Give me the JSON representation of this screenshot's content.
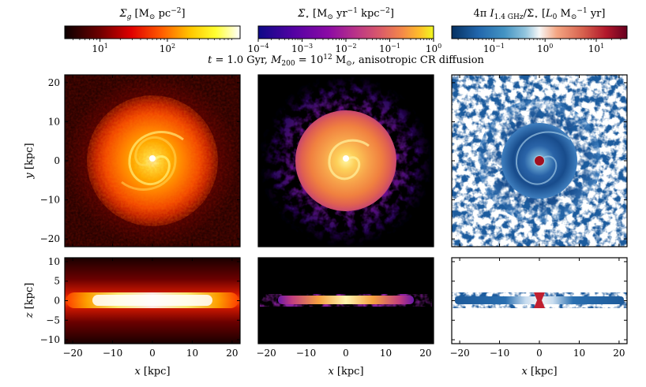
{
  "figure": {
    "subtitle": "t = 1.0 Gyr, M200 = 10^12 M⊙, anisotropic CR diffusion",
    "subtitle_parts": [
      "t",
      " = 1.0 Gyr, ",
      "M",
      "200",
      " = 10",
      "12",
      " M",
      "⊙",
      ", anisotropic CR diffusion"
    ]
  },
  "colorbars": [
    {
      "name": "gas-surface-density",
      "label": "Σg [M⊙ pc−2]",
      "label_parts": [
        "Σ",
        "g",
        " [M",
        "⊙",
        " pc",
        "−2",
        "]"
      ],
      "scale": "log",
      "range": [
        3,
        1200
      ],
      "colormap": "hot",
      "ticks": [
        {
          "base": "10",
          "exp": "1",
          "value": 10
        },
        {
          "base": "10",
          "exp": "2",
          "value": 100
        }
      ]
    },
    {
      "name": "star-formation-rate-density",
      "label": "Σ̇⋆ [M⊙ yr−1 kpc−2]",
      "label_parts": [
        "Σ̇",
        "⋆",
        " [M",
        "⊙",
        " yr",
        "−1",
        " kpc",
        "−2",
        "]"
      ],
      "scale": "log",
      "range": [
        0.0001,
        1
      ],
      "colormap": "plasma",
      "ticks": [
        {
          "base": "10",
          "exp": "−4",
          "value": 0.0001
        },
        {
          "base": "10",
          "exp": "−3",
          "value": 0.001
        },
        {
          "base": "10",
          "exp": "−2",
          "value": 0.01
        },
        {
          "base": "10",
          "exp": "−1",
          "value": 0.1
        },
        {
          "base": "10",
          "exp": "0",
          "value": 1
        }
      ]
    },
    {
      "name": "radio-to-sfr-ratio",
      "label": "4π I1.4 GHz/Σ̇⋆ [L0 M⊙−1 yr]",
      "label_parts": [
        "4π ",
        "I",
        "1.4 GHz",
        "/Σ̇",
        "⋆",
        " [",
        "L",
        "0",
        " M",
        "⊙",
        "−1",
        " yr]"
      ],
      "scale": "log",
      "range": [
        0.015,
        40
      ],
      "colormap": "RdBu_r",
      "ticks": [
        {
          "base": "10",
          "exp": "−1",
          "value": 0.1
        },
        {
          "base": "10",
          "exp": "0",
          "value": 1
        },
        {
          "base": "10",
          "exp": "1",
          "value": 10
        }
      ]
    }
  ],
  "chart_data": [
    {
      "type": "heatmap",
      "panel": "face-on gas surface density",
      "colormap": "hot",
      "xlabel": "",
      "ylabel": "y [kpc]",
      "xlim": [
        -22,
        22
      ],
      "ylim": [
        -22,
        22
      ],
      "xticks": [
        -20,
        -10,
        0,
        10,
        20
      ],
      "yticks": [
        -20,
        -10,
        0,
        10,
        20
      ]
    },
    {
      "type": "heatmap",
      "panel": "face-on star formation rate density",
      "colormap": "plasma",
      "xlabel": "",
      "ylabel": "",
      "xlim": [
        -22,
        22
      ],
      "ylim": [
        -22,
        22
      ],
      "xticks": [
        -20,
        -10,
        0,
        10,
        20
      ],
      "yticks": [
        -20,
        -10,
        0,
        10,
        20
      ]
    },
    {
      "type": "heatmap",
      "panel": "face-on radio-to-SFR ratio",
      "colormap": "RdBu_r",
      "xlabel": "",
      "ylabel": "",
      "xlim": [
        -22,
        22
      ],
      "ylim": [
        -22,
        22
      ],
      "xticks": [
        -20,
        -10,
        0,
        10,
        20
      ],
      "yticks": [
        -20,
        -10,
        0,
        10,
        20
      ]
    },
    {
      "type": "heatmap",
      "panel": "edge-on gas surface density",
      "colormap": "hot",
      "xlabel": "x [kpc]",
      "ylabel": "z [kpc]",
      "xlim": [
        -22,
        22
      ],
      "ylim": [
        -11,
        11
      ],
      "xticks": [
        -20,
        -10,
        0,
        10,
        20
      ],
      "yticks": [
        -10,
        -5,
        0,
        5,
        10
      ]
    },
    {
      "type": "heatmap",
      "panel": "edge-on star formation rate density",
      "colormap": "plasma",
      "xlabel": "x [kpc]",
      "ylabel": "",
      "xlim": [
        -22,
        22
      ],
      "ylim": [
        -11,
        11
      ],
      "xticks": [
        -20,
        -10,
        0,
        10,
        20
      ],
      "yticks": [
        -10,
        -5,
        0,
        5,
        10
      ]
    },
    {
      "type": "heatmap",
      "panel": "edge-on radio-to-SFR ratio",
      "colormap": "RdBu_r",
      "xlabel": "x [kpc]",
      "ylabel": "",
      "xlim": [
        -22,
        22
      ],
      "ylim": [
        -11,
        11
      ],
      "xticks": [
        -20,
        -10,
        0,
        10,
        20
      ],
      "yticks": [
        -10,
        -5,
        0,
        5,
        10
      ]
    }
  ],
  "axes": {
    "y_label_top": {
      "var": "y",
      "unit": " [kpc]"
    },
    "z_label": {
      "var": "z",
      "unit": " [kpc]"
    },
    "x_label": {
      "var": "x",
      "unit": " [kpc]"
    }
  }
}
